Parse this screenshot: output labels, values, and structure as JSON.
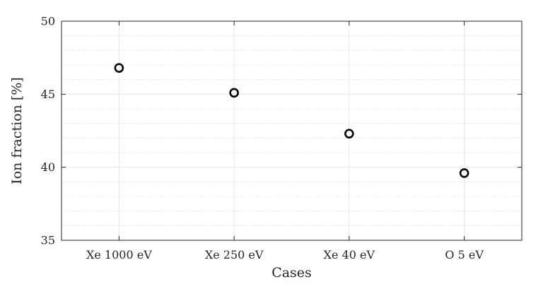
{
  "chart_data": {
    "type": "scatter",
    "title": "",
    "xlabel": "Cases",
    "ylabel": "Ion fraction [%]",
    "categories": [
      "Xe 1000 eV",
      "Xe 250 eV",
      "Xe 40 eV",
      "O 5 eV"
    ],
    "series": [
      {
        "name": "",
        "values": [
          46.8,
          45.1,
          42.3,
          39.6
        ]
      }
    ],
    "ylim": [
      35,
      50
    ],
    "yticks": [
      "35",
      "40",
      "45",
      "50"
    ],
    "grid": true,
    "minor_grid": true,
    "marker": "open-circle",
    "marker_color": "#000000"
  }
}
